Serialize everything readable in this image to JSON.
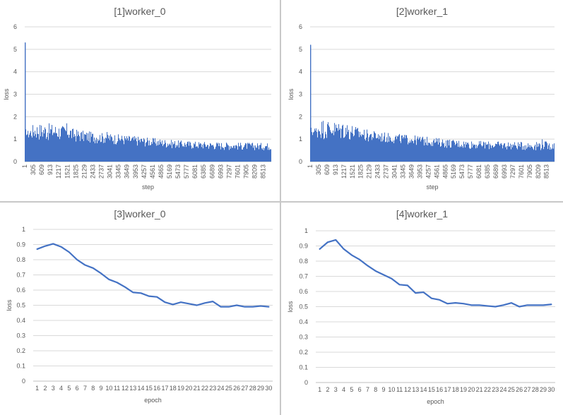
{
  "colors": {
    "series": "#4472C4",
    "grid": "#d9d9d9",
    "text": "#595959",
    "background": "#ffffff"
  },
  "chart_data": [
    {
      "type": "bar",
      "title": "[1]worker_0",
      "xlabel": "step",
      "ylabel": "loss",
      "ylim": [
        0,
        6
      ],
      "yticks": [
        "0",
        "1",
        "2",
        "3",
        "4",
        "5",
        "6"
      ],
      "xtick_labels": [
        "1",
        "305",
        "609",
        "913",
        "1217",
        "1521",
        "1825",
        "2129",
        "2433",
        "2737",
        "3041",
        "3345",
        "3649",
        "3953",
        "4257",
        "4561",
        "4865",
        "5169",
        "5473",
        "5777",
        "6081",
        "6385",
        "6689",
        "6993",
        "7297",
        "7601",
        "7905",
        "8209",
        "8513"
      ],
      "x_range": [
        1,
        8800
      ],
      "grid": true,
      "series": [
        {
          "x": [
            1,
            10,
            20,
            40,
            100,
            200,
            305,
            450,
            609,
            760,
            913,
            1065,
            1217,
            1370,
            1521,
            1675,
            1825,
            1975,
            2129,
            2280,
            2433,
            2585,
            2737,
            2890,
            3041,
            3195,
            3345,
            3500,
            3649,
            3800,
            3953,
            4105,
            4257,
            4410,
            4561,
            4715,
            4865,
            5020,
            5169,
            5320,
            5473,
            5625,
            5777,
            5930,
            6081,
            6235,
            6385,
            6540,
            6689,
            6840,
            6993,
            7145,
            7297,
            7450,
            7601,
            7755,
            7905,
            8060,
            8209,
            8360,
            8513,
            8665,
            8800
          ],
          "low": [
            5.3,
            2.0,
            1.5,
            1.2,
            1.0,
            0.95,
            0.95,
            0.95,
            0.9,
            0.9,
            0.9,
            0.9,
            0.9,
            0.88,
            0.88,
            0.85,
            0.85,
            0.85,
            0.82,
            0.82,
            0.82,
            0.8,
            0.8,
            0.78,
            0.78,
            0.75,
            0.75,
            0.72,
            0.72,
            0.7,
            0.7,
            0.68,
            0.68,
            0.65,
            0.65,
            0.62,
            0.62,
            0.6,
            0.6,
            0.58,
            0.58,
            0.56,
            0.56,
            0.55,
            0.55,
            0.54,
            0.54,
            0.53,
            0.53,
            0.52,
            0.52,
            0.52,
            0.52,
            0.51,
            0.51,
            0.51,
            0.51,
            0.5,
            0.5,
            0.5,
            0.5,
            0.5,
            0.5
          ],
          "high": [
            5.3,
            2.0,
            1.5,
            1.3,
            1.4,
            1.55,
            1.7,
            1.7,
            1.72,
            1.72,
            1.7,
            1.68,
            1.66,
            1.62,
            1.75,
            1.5,
            1.45,
            1.4,
            1.38,
            1.35,
            1.32,
            1.3,
            1.28,
            1.36,
            1.26,
            1.24,
            1.22,
            1.2,
            1.18,
            1.16,
            1.15,
            1.12,
            1.1,
            1.08,
            1.06,
            1.04,
            1.02,
            1.0,
            0.98,
            0.96,
            0.95,
            0.94,
            0.93,
            0.92,
            0.91,
            0.9,
            0.9,
            0.89,
            0.88,
            0.88,
            0.87,
            0.87,
            0.86,
            0.86,
            0.85,
            0.85,
            0.85,
            0.85,
            0.84,
            0.84,
            0.84,
            0.84,
            0.84
          ]
        }
      ]
    },
    {
      "type": "bar",
      "title": "[2]worker_1",
      "xlabel": "step",
      "ylabel": "loss",
      "ylim": [
        0,
        6
      ],
      "yticks": [
        "0",
        "1",
        "2",
        "3",
        "4",
        "5",
        "6"
      ],
      "xtick_labels": [
        "1",
        "305",
        "609",
        "913",
        "1217",
        "1521",
        "1825",
        "2129",
        "2433",
        "2737",
        "3041",
        "3345",
        "3649",
        "3953",
        "4257",
        "4561",
        "4865",
        "5169",
        "5473",
        "5777",
        "6081",
        "6385",
        "6689",
        "6993",
        "7297",
        "7601",
        "7905",
        "8209",
        "8513"
      ],
      "x_range": [
        1,
        8800
      ],
      "grid": true,
      "series": [
        {
          "x": [
            1,
            10,
            20,
            40,
            100,
            200,
            305,
            450,
            609,
            760,
            913,
            1065,
            1217,
            1370,
            1521,
            1675,
            1825,
            1975,
            2129,
            2280,
            2433,
            2585,
            2737,
            2890,
            3041,
            3195,
            3345,
            3500,
            3649,
            3800,
            3953,
            4105,
            4257,
            4410,
            4561,
            4715,
            4865,
            5020,
            5169,
            5320,
            5473,
            5625,
            5777,
            5930,
            6081,
            6235,
            6385,
            6540,
            6689,
            6840,
            6993,
            7145,
            7297,
            7450,
            7601,
            7755,
            7905,
            8060,
            8209,
            8360,
            8513,
            8665,
            8800
          ],
          "low": [
            5.2,
            2.4,
            1.6,
            1.25,
            1.05,
            1.0,
            1.0,
            0.98,
            0.95,
            0.95,
            0.95,
            0.92,
            0.92,
            0.9,
            0.9,
            0.88,
            0.88,
            0.86,
            0.85,
            0.84,
            0.83,
            0.82,
            0.8,
            0.8,
            0.78,
            0.77,
            0.76,
            0.75,
            0.74,
            0.72,
            0.7,
            0.68,
            0.67,
            0.66,
            0.64,
            0.62,
            0.61,
            0.6,
            0.58,
            0.58,
            0.56,
            0.56,
            0.55,
            0.55,
            0.54,
            0.54,
            0.53,
            0.53,
            0.52,
            0.52,
            0.52,
            0.52,
            0.51,
            0.51,
            0.51,
            0.5,
            0.5,
            0.5,
            0.5,
            0.5,
            0.5,
            0.5,
            0.5
          ],
          "high": [
            5.2,
            2.4,
            1.6,
            1.4,
            1.5,
            1.6,
            1.8,
            1.9,
            1.85,
            1.82,
            1.8,
            1.75,
            1.9,
            1.7,
            1.65,
            1.55,
            1.5,
            1.45,
            1.4,
            1.38,
            1.35,
            1.32,
            1.3,
            1.28,
            1.26,
            1.24,
            1.22,
            1.2,
            1.18,
            1.16,
            1.15,
            1.12,
            1.1,
            1.08,
            1.06,
            1.04,
            1.02,
            1.0,
            0.98,
            0.97,
            0.96,
            0.95,
            0.94,
            0.93,
            0.92,
            0.92,
            0.91,
            0.9,
            0.9,
            0.9,
            0.89,
            0.89,
            0.88,
            0.88,
            0.88,
            0.88,
            0.87,
            0.87,
            0.9,
            1.05,
            0.87,
            0.88,
            0.86
          ]
        }
      ]
    },
    {
      "type": "line",
      "title": "[3]worker_0",
      "xlabel": "epoch",
      "ylabel": "loss",
      "ylim": [
        0,
        1
      ],
      "yticks": [
        "0",
        "0.1",
        "0.2",
        "0.3",
        "0.4",
        "0.5",
        "0.6",
        "0.7",
        "0.8",
        "0.9",
        "1"
      ],
      "x": [
        1,
        2,
        3,
        4,
        5,
        6,
        7,
        8,
        9,
        10,
        11,
        12,
        13,
        14,
        15,
        16,
        17,
        18,
        19,
        20,
        21,
        22,
        23,
        24,
        25,
        26,
        27,
        28,
        29,
        30
      ],
      "grid": true,
      "series": [
        {
          "values": [
            0.87,
            0.89,
            0.905,
            0.885,
            0.85,
            0.8,
            0.765,
            0.745,
            0.71,
            0.67,
            0.65,
            0.62,
            0.585,
            0.58,
            0.56,
            0.555,
            0.52,
            0.505,
            0.52,
            0.51,
            0.5,
            0.515,
            0.525,
            0.49,
            0.49,
            0.5,
            0.49,
            0.49,
            0.495,
            0.49
          ]
        }
      ]
    },
    {
      "type": "line",
      "title": "[4]worker_1",
      "xlabel": "epoch",
      "ylabel": "loss",
      "ylim": [
        0,
        1
      ],
      "yticks": [
        "0",
        "0.1",
        "0.2",
        "0.3",
        "0.4",
        "0.5",
        "0.6",
        "0.7",
        "0.8",
        "0.9",
        "1"
      ],
      "x": [
        1,
        2,
        3,
        4,
        5,
        6,
        7,
        8,
        9,
        10,
        11,
        12,
        13,
        14,
        15,
        16,
        17,
        18,
        19,
        20,
        21,
        22,
        23,
        24,
        25,
        26,
        27,
        28,
        29,
        30
      ],
      "grid": true,
      "series": [
        {
          "values": [
            0.88,
            0.925,
            0.94,
            0.88,
            0.84,
            0.81,
            0.77,
            0.735,
            0.71,
            0.685,
            0.645,
            0.64,
            0.59,
            0.595,
            0.555,
            0.545,
            0.52,
            0.525,
            0.52,
            0.51,
            0.51,
            0.505,
            0.5,
            0.51,
            0.525,
            0.5,
            0.51,
            0.51,
            0.51,
            0.515
          ]
        }
      ]
    }
  ]
}
